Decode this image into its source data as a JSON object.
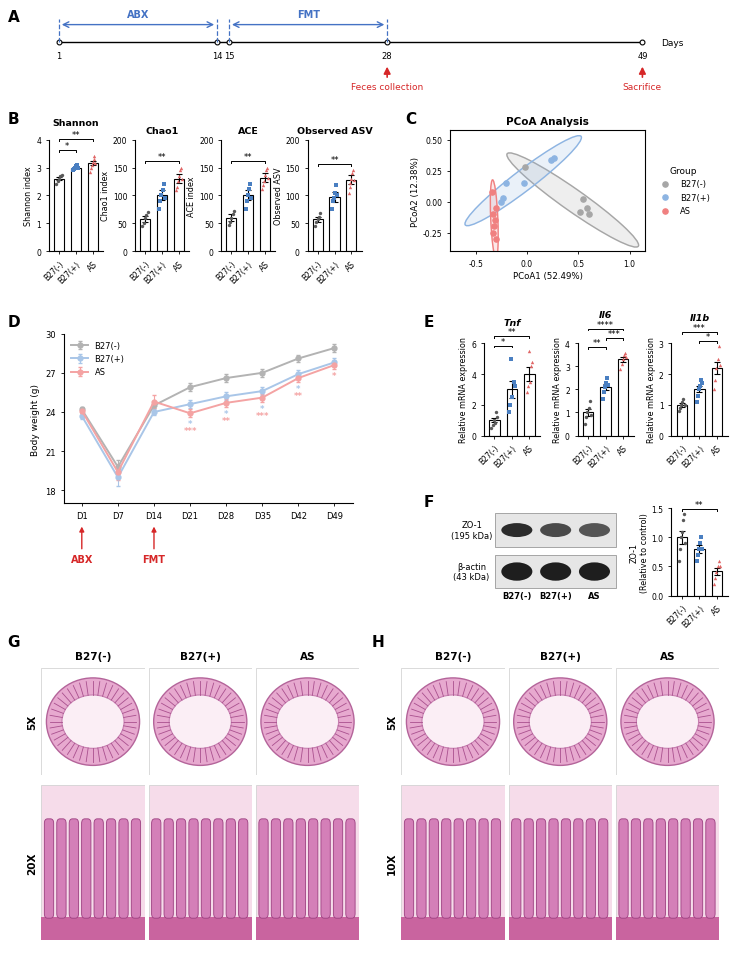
{
  "panels": [
    "A",
    "B",
    "C",
    "D",
    "E",
    "F",
    "G",
    "H"
  ],
  "groups": [
    {
      "name": "B27(-)",
      "color": "#595959",
      "marker": "circle"
    },
    {
      "name": "B27(+)",
      "color": "#4a7fc1",
      "marker": "square"
    },
    {
      "name": "AS",
      "color": "#e06666",
      "marker": "triangle"
    }
  ],
  "timeline": {
    "phases": [
      {
        "label": "ABX",
        "start": 1,
        "end": 14
      },
      {
        "label": "FMT",
        "start": 15,
        "end": 28
      }
    ],
    "ticks": [
      1,
      14,
      15,
      28,
      49
    ],
    "xlabel": "Days",
    "events": [
      {
        "label": "Feces collection",
        "day": 28
      },
      {
        "label": "Sacrifice",
        "day": 49
      }
    ]
  },
  "chart_data": [
    {
      "type": "bar",
      "title": "Shannon",
      "ylabel": "Shannon index",
      "categories": [
        "B27(-)",
        "B27(+)",
        "AS"
      ],
      "values": [
        2.6,
        3.0,
        3.15
      ],
      "errors": [
        0.06,
        0.03,
        0.07
      ],
      "color": "#ffffff",
      "points": [
        [
          2.4,
          2.5,
          2.6,
          2.7,
          2.75
        ],
        [
          2.9,
          2.95,
          3.0,
          3.05,
          3.1,
          3.0
        ],
        [
          2.85,
          3.0,
          3.1,
          3.2,
          3.3,
          3.4,
          3.15
        ]
      ],
      "ylim": [
        0,
        4
      ],
      "yticks": [
        0,
        1,
        2,
        3,
        4
      ],
      "significance": [
        {
          "pair": [
            0,
            1
          ],
          "label": "*"
        },
        {
          "pair": [
            0,
            2
          ],
          "label": "**"
        }
      ]
    },
    {
      "type": "bar",
      "title": "Chao1",
      "ylabel": "Chao1 index",
      "categories": [
        "B27(-)",
        "B27(+)",
        "AS"
      ],
      "values": [
        58,
        100,
        130
      ],
      "errors": [
        6,
        9,
        8
      ],
      "color": "#ffffff",
      "points": [
        [
          45,
          50,
          60,
          65,
          70
        ],
        [
          75,
          90,
          100,
          110,
          120,
          95
        ],
        [
          110,
          115,
          125,
          135,
          145,
          150,
          130
        ]
      ],
      "ylim": [
        0,
        200
      ],
      "yticks": [
        0,
        50,
        100,
        150,
        200
      ],
      "significance": [
        {
          "pair": [
            0,
            2
          ],
          "label": "**"
        }
      ]
    },
    {
      "type": "bar",
      "title": "ACE",
      "ylabel": "ACE index",
      "categories": [
        "B27(-)",
        "B27(+)",
        "AS"
      ],
      "values": [
        60,
        100,
        132
      ],
      "errors": [
        6,
        9,
        8
      ],
      "color": "#ffffff",
      "points": [
        [
          47,
          52,
          60,
          66,
          72
        ],
        [
          76,
          90,
          100,
          112,
          120,
          96
        ],
        [
          112,
          118,
          126,
          136,
          146,
          150,
          132
        ]
      ],
      "ylim": [
        0,
        200
      ],
      "yticks": [
        0,
        50,
        100,
        150,
        200
      ],
      "significance": [
        {
          "pair": [
            0,
            2
          ],
          "label": "**"
        }
      ]
    },
    {
      "type": "bar",
      "title": "Observed ASV",
      "ylabel": "Observed ASV",
      "categories": [
        "B27(-)",
        "B27(+)",
        "AS"
      ],
      "values": [
        57,
        98,
        128
      ],
      "errors": [
        5,
        9,
        8
      ],
      "color": "#ffffff",
      "points": [
        [
          45,
          52,
          58,
          62,
          68
        ],
        [
          75,
          90,
          95,
          105,
          118,
          100
        ],
        [
          105,
          115,
          122,
          130,
          140,
          145,
          128
        ]
      ],
      "ylim": [
        0,
        200
      ],
      "yticks": [
        0,
        50,
        100,
        150,
        200
      ],
      "significance": [
        {
          "pair": [
            0,
            2
          ],
          "label": "**"
        }
      ]
    },
    {
      "type": "scatter",
      "title": "PCoA Analysis",
      "xlabel": "PCoA1 (52.49%)",
      "ylabel": "PCoA2 (12.38%)",
      "legend_title": "Group",
      "legend": "right",
      "series": [
        {
          "name": "B27(-)",
          "color": "#a6a6a6",
          "x": [
            -0.02,
            0.55,
            0.58,
            0.6,
            0.52
          ],
          "y": [
            0.28,
            0.02,
            -0.05,
            -0.1,
            -0.08
          ]
        },
        {
          "name": "B27(+)",
          "color": "#8db4e2",
          "x": [
            0.23,
            0.26,
            -0.03,
            -0.2,
            -0.23,
            -0.25
          ],
          "y": [
            0.34,
            0.35,
            0.15,
            0.15,
            0.03,
            0.0
          ]
        },
        {
          "name": "AS",
          "color": "#f08080",
          "x": [
            -0.34,
            -0.3,
            -0.33,
            -0.31,
            -0.32,
            -0.33,
            -0.3
          ],
          "y": [
            0.08,
            -0.05,
            -0.1,
            -0.15,
            -0.2,
            -0.25,
            -0.3
          ]
        }
      ],
      "xlim": [
        -0.75,
        1.15
      ],
      "xticks": [
        -0.5,
        0.0,
        0.5,
        1.0
      ],
      "ylim": [
        -0.4,
        0.58
      ],
      "yticks": [
        -0.25,
        {
          "value": 0,
          "label": "0.00"
        },
        0.25,
        {
          "value": 0.5,
          "label": "0.50"
        }
      ]
    },
    {
      "type": "line",
      "ylabel": "Body weight (g)",
      "legend": "upper left",
      "categories": [
        "D1",
        "D7",
        "D14",
        "D21",
        "D28",
        "D35",
        "D42",
        "D49"
      ],
      "series": [
        {
          "name": "B27(-)",
          "color": "#b3b3b3",
          "marker": "circle",
          "values": [
            24.2,
            19.8,
            24.5,
            25.9,
            26.6,
            27.0,
            28.1,
            28.9
          ],
          "errors": [
            0.2,
            0.5,
            0.2,
            0.3,
            0.3,
            0.3,
            0.3,
            0.3
          ],
          "significance": [
            null,
            null,
            null,
            null,
            null,
            null,
            null,
            null
          ]
        },
        {
          "name": "B27(+)",
          "color": "#a9c6e8",
          "marker": "circle",
          "values": [
            23.7,
            19.0,
            24.0,
            24.6,
            25.2,
            25.6,
            26.9,
            27.8
          ],
          "errors": [
            0.2,
            0.7,
            0.2,
            0.3,
            0.3,
            0.3,
            0.3,
            0.3
          ],
          "significance": [
            null,
            null,
            null,
            "*",
            "*",
            "*",
            "*",
            null
          ]
        },
        {
          "name": "AS",
          "color": "#f4a3a3",
          "marker": "circle",
          "values": [
            24.1,
            19.4,
            24.8,
            23.9,
            24.7,
            25.1,
            26.6,
            27.6
          ],
          "errors": [
            0.2,
            0.6,
            0.5,
            0.3,
            0.3,
            0.3,
            0.3,
            0.3
          ],
          "significance": [
            null,
            null,
            null,
            "***",
            "**",
            "***",
            "**",
            "*"
          ]
        }
      ],
      "annotations": [
        {
          "text": "ABX",
          "category": "D1"
        },
        {
          "text": "FMT",
          "category": "D14"
        }
      ],
      "ylim": [
        17,
        30
      ],
      "yticks": [
        18,
        21,
        24,
        27,
        30
      ]
    },
    {
      "type": "bar",
      "title": "Tnf",
      "ylabel": "Relative mRNA expression",
      "categories": [
        "B27(-)",
        "B27(+)",
        "AS"
      ],
      "values": [
        1.0,
        3.0,
        4.0
      ],
      "errors": [
        0.15,
        0.55,
        0.45
      ],
      "color": "#ffffff",
      "points": [
        [
          0.5,
          0.7,
          1.0,
          0.8,
          1.5,
          1.2
        ],
        [
          1.5,
          2.0,
          5.0,
          2.5,
          3.5,
          3.2
        ],
        [
          2.8,
          3.2,
          5.5,
          3.5,
          4.5,
          4.8
        ]
      ],
      "ylim": [
        0,
        6
      ],
      "yticks": [
        0,
        2,
        4,
        6
      ],
      "significance": [
        {
          "pair": [
            0,
            1
          ],
          "label": "*"
        },
        {
          "pair": [
            0,
            2
          ],
          "label": "**"
        }
      ]
    },
    {
      "type": "bar",
      "title": "Il6",
      "ylabel": "Relative mRNA expression",
      "categories": [
        "B27(-)",
        "B27(+)",
        "AS"
      ],
      "values": [
        1.0,
        2.1,
        3.3
      ],
      "errors": [
        0.15,
        0.13,
        0.1
      ],
      "color": "#ffffff",
      "points": [
        [
          0.5,
          0.8,
          1.0,
          1.2,
          1.5,
          0.9
        ],
        [
          1.6,
          1.9,
          2.1,
          2.3,
          2.5,
          2.2
        ],
        [
          2.9,
          3.1,
          3.3,
          3.5,
          3.6,
          3.4
        ]
      ],
      "ylim": [
        0,
        4
      ],
      "yticks": [
        0,
        1,
        2,
        3,
        4
      ],
      "significance": [
        {
          "pair": [
            0,
            1
          ],
          "label": "**"
        },
        {
          "pair": [
            1,
            2
          ],
          "label": "***"
        },
        {
          "pair": [
            0,
            2
          ],
          "label": "****"
        }
      ]
    },
    {
      "type": "bar",
      "title": "Il1b",
      "ylabel": "Relative mRNA expression",
      "categories": [
        "B27(-)",
        "B27(+)",
        "AS"
      ],
      "values": [
        1.0,
        1.5,
        2.2
      ],
      "errors": [
        0.06,
        0.1,
        0.2
      ],
      "color": "#ffffff",
      "points": [
        [
          0.8,
          0.9,
          1.0,
          1.1,
          1.2,
          1.0
        ],
        [
          1.1,
          1.3,
          1.5,
          1.6,
          1.8,
          1.7
        ],
        [
          1.5,
          1.8,
          2.2,
          2.5,
          2.9,
          2.3
        ]
      ],
      "ylim": [
        0,
        3
      ],
      "yticks": [
        0,
        1,
        2,
        3
      ],
      "significance": [
        {
          "pair": [
            1,
            2
          ],
          "label": "*"
        },
        {
          "pair": [
            0,
            2
          ],
          "label": "***"
        }
      ]
    },
    {
      "type": "bar",
      "ylabel": "ZO-1\n(Relative to control)",
      "categories": [
        "B27(-)",
        "B27(+)",
        "AS"
      ],
      "values": [
        1.0,
        0.8,
        0.42
      ],
      "errors": [
        0.11,
        0.07,
        0.06
      ],
      "color": "#ffffff",
      "points": [
        [
          0.6,
          0.8,
          1.0,
          1.1,
          1.3,
          1.4,
          0.9
        ],
        [
          0.6,
          0.7,
          0.8,
          0.9,
          1.0,
          0.8
        ],
        [
          0.2,
          0.3,
          0.4,
          0.5,
          0.6,
          0.5
        ]
      ],
      "ylim": [
        0.0,
        1.5
      ],
      "yticks": [
        0.0,
        0.5,
        1.0,
        1.5
      ],
      "significance": [
        {
          "pair": [
            0,
            2
          ],
          "label": "**"
        }
      ]
    }
  ],
  "western_blot": {
    "bands": [
      "ZO-1\n(195 kDa)",
      "β-actin\n(43 kDa)"
    ],
    "lanes": [
      "B27(-)",
      "B27(+)",
      "AS"
    ]
  },
  "histology": [
    {
      "columns": [
        "B27(-)",
        "B27(+)",
        "AS"
      ],
      "rows": [
        "5X",
        "20X"
      ]
    },
    {
      "columns": [
        "B27(-)",
        "B27(+)",
        "AS"
      ],
      "rows": [
        "5X",
        "10X"
      ]
    }
  ]
}
